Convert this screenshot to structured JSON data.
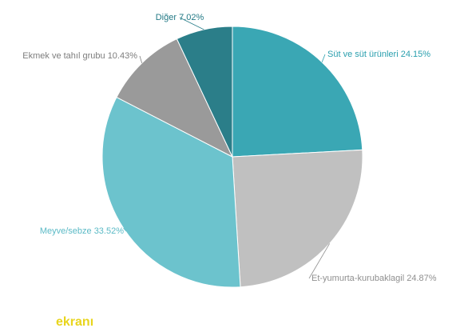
{
  "chart_data": {
    "type": "pie",
    "categories": [
      "Süt ve süt ürünleri",
      "Et-yumurta-kurubaklagil",
      "Meyve/sebze",
      "Ekmek ve tahıl grubu",
      "Diğer"
    ],
    "values": [
      24.15,
      24.87,
      33.52,
      10.43,
      7.02
    ],
    "value_labels": [
      "24.15%",
      "24.87%",
      "33.52%",
      "10.43%",
      "7.02%"
    ],
    "colors": [
      "#3aa7b4",
      "#c0c0c0",
      "#6cc3cd",
      "#9a9a9a",
      "#2b7e89"
    ],
    "label_colors": [
      "#2a9fae",
      "#8f8f8f",
      "#5bbac6",
      "#7d7d7d",
      "#237a86"
    ]
  },
  "watermark": "ekranı"
}
